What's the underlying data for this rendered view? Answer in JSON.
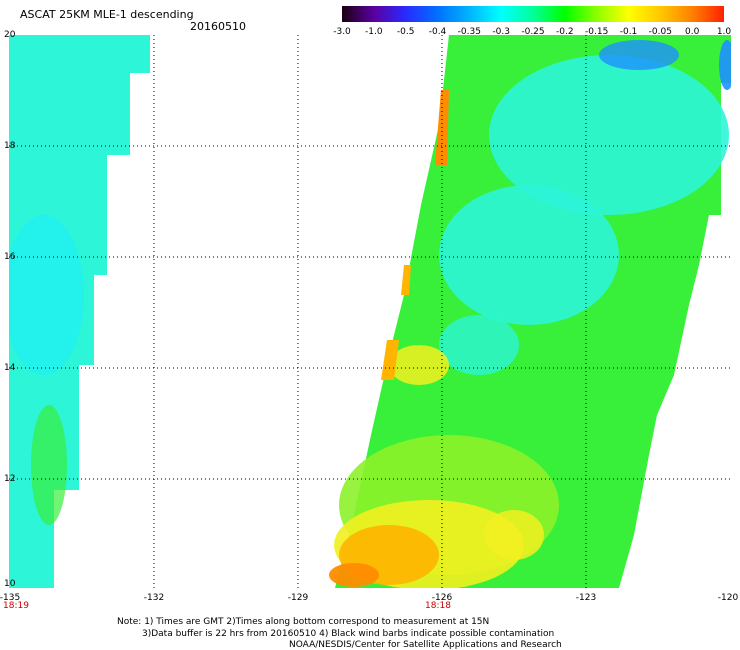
{
  "header": {
    "title": "ASCAT 25KM MLE-1 descending",
    "date": "20160510"
  },
  "colorbar": {
    "labels": [
      "-3.0",
      "-1.0",
      "-0.5",
      "-0.4",
      "-0.35",
      "-0.3",
      "-0.25",
      "-0.2",
      "-0.15",
      "-0.1",
      "-0.05",
      "0.0",
      "1.0"
    ],
    "colors": [
      "#1a0010",
      "#5a00a0",
      "#2a2aff",
      "#0070ff",
      "#00b4ff",
      "#00ffff",
      "#00ff9a",
      "#00ff00",
      "#8cff00",
      "#ffff00",
      "#ffc800",
      "#ff8000",
      "#ff2000"
    ]
  },
  "map": {
    "lon_range": [
      -135,
      -120
    ],
    "lat_range": [
      10,
      20
    ],
    "lat_ticks": [
      "20",
      "18",
      "16",
      "14",
      "12",
      "10"
    ],
    "lon_ticks": [
      "-135",
      "-132",
      "-129",
      "-126",
      "-123",
      "-120"
    ],
    "gridlines": true,
    "swath_colors": {
      "cyan": "#2cf5d8",
      "cyan_light": "#22f0f0",
      "green": "#38f03a",
      "green_light": "#8cf22a",
      "yellow": "#f2f020",
      "orange": "#ffb400",
      "orange_dark": "#ff8c00",
      "blue": "#1e90ff"
    }
  },
  "times": [
    "18:19",
    "18:18"
  ],
  "notes": {
    "line1": "Note: 1) Times are GMT 2)Times along bottom correspond to measurement at 15N",
    "line2": "3)Data buffer is 22 hrs from 20160510 4) Black wind barbs indicate possible contamination",
    "line3": "NOAA/NESDIS/Center for Satellite Applications and Research"
  }
}
